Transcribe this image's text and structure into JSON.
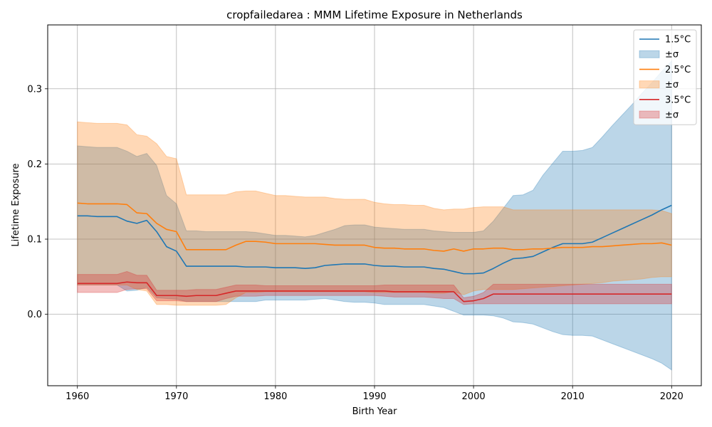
{
  "chart_data": {
    "type": "line",
    "title": "cropfailedarea : MMM Lifetime Exposure in Netherlands",
    "xlabel": "Birth Year",
    "ylabel": "Lifetime Exposure",
    "xlim": [
      1957,
      2023
    ],
    "ylim": [
      -0.095,
      0.385
    ],
    "xticks": [
      1960,
      1970,
      1980,
      1990,
      2000,
      2010,
      2020
    ],
    "yticks": [
      0.0,
      0.1,
      0.2,
      0.3
    ],
    "ytick_labels": [
      "0.0",
      "0.1",
      "0.2",
      "0.3"
    ],
    "grid": true,
    "legend_position": "top-right",
    "legend": [
      {
        "label": "1.5°C",
        "kind": "line",
        "series": 0
      },
      {
        "label": "±σ",
        "kind": "band",
        "series": 0
      },
      {
        "label": "2.5°C",
        "kind": "line",
        "series": 1
      },
      {
        "label": "±σ",
        "kind": "band",
        "series": 1
      },
      {
        "label": "3.5°C",
        "kind": "line",
        "series": 2
      },
      {
        "label": "±σ",
        "kind": "band",
        "series": 2
      }
    ],
    "x": [
      1960,
      1961,
      1962,
      1963,
      1964,
      1965,
      1966,
      1967,
      1968,
      1969,
      1970,
      1971,
      1972,
      1973,
      1974,
      1975,
      1976,
      1977,
      1978,
      1979,
      1980,
      1981,
      1982,
      1983,
      1984,
      1985,
      1986,
      1987,
      1988,
      1989,
      1990,
      1991,
      1992,
      1993,
      1994,
      1995,
      1996,
      1997,
      1998,
      1999,
      2000,
      2001,
      2002,
      2003,
      2004,
      2005,
      2006,
      2007,
      2008,
      2009,
      2010,
      2011,
      2012,
      2013,
      2014,
      2015,
      2016,
      2017,
      2018,
      2019,
      2020
    ],
    "series": [
      {
        "name": "1.5°C",
        "color": "#1f77b4",
        "values": [
          0.131,
          0.131,
          0.13,
          0.13,
          0.13,
          0.124,
          0.121,
          0.125,
          0.11,
          0.09,
          0.084,
          0.064,
          0.064,
          0.064,
          0.064,
          0.064,
          0.064,
          0.063,
          0.063,
          0.063,
          0.062,
          0.062,
          0.062,
          0.061,
          0.062,
          0.065,
          0.066,
          0.067,
          0.067,
          0.067,
          0.065,
          0.064,
          0.064,
          0.063,
          0.063,
          0.063,
          0.061,
          0.06,
          0.057,
          0.054,
          0.054,
          0.055,
          0.061,
          0.068,
          0.074,
          0.075,
          0.077,
          0.083,
          0.089,
          0.094,
          0.094,
          0.094,
          0.096,
          0.102,
          0.108,
          0.114,
          0.12,
          0.126,
          0.132,
          0.139,
          0.145
        ],
        "lower": [
          0.039,
          0.039,
          0.039,
          0.039,
          0.039,
          0.031,
          0.032,
          0.036,
          0.022,
          0.021,
          0.02,
          0.017,
          0.017,
          0.017,
          0.017,
          0.017,
          0.017,
          0.017,
          0.017,
          0.019,
          0.019,
          0.019,
          0.019,
          0.019,
          0.02,
          0.021,
          0.019,
          0.017,
          0.016,
          0.016,
          0.015,
          0.013,
          0.013,
          0.013,
          0.013,
          0.013,
          0.011,
          0.009,
          0.004,
          -0.001,
          -0.001,
          -0.001,
          -0.002,
          -0.005,
          -0.01,
          -0.011,
          -0.013,
          -0.018,
          -0.023,
          -0.027,
          -0.028,
          -0.028,
          -0.029,
          -0.034,
          -0.039,
          -0.044,
          -0.049,
          -0.054,
          -0.059,
          -0.065,
          -0.074
        ],
        "upper": [
          0.224,
          0.223,
          0.222,
          0.222,
          0.222,
          0.217,
          0.21,
          0.214,
          0.198,
          0.158,
          0.147,
          0.111,
          0.111,
          0.11,
          0.11,
          0.11,
          0.11,
          0.11,
          0.109,
          0.107,
          0.105,
          0.105,
          0.104,
          0.103,
          0.105,
          0.109,
          0.113,
          0.118,
          0.119,
          0.119,
          0.116,
          0.115,
          0.114,
          0.113,
          0.113,
          0.113,
          0.111,
          0.11,
          0.109,
          0.109,
          0.109,
          0.111,
          0.124,
          0.141,
          0.158,
          0.159,
          0.165,
          0.185,
          0.201,
          0.217,
          0.217,
          0.218,
          0.222,
          0.236,
          0.251,
          0.265,
          0.279,
          0.294,
          0.308,
          0.323,
          0.337
        ]
      },
      {
        "name": "2.5°C",
        "color": "#ff7f0e",
        "values": [
          0.148,
          0.147,
          0.147,
          0.147,
          0.147,
          0.146,
          0.135,
          0.134,
          0.121,
          0.113,
          0.11,
          0.086,
          0.086,
          0.086,
          0.086,
          0.086,
          0.092,
          0.097,
          0.097,
          0.096,
          0.094,
          0.094,
          0.094,
          0.094,
          0.094,
          0.093,
          0.092,
          0.092,
          0.092,
          0.092,
          0.089,
          0.088,
          0.088,
          0.087,
          0.087,
          0.087,
          0.085,
          0.084,
          0.087,
          0.084,
          0.087,
          0.087,
          0.088,
          0.088,
          0.086,
          0.086,
          0.087,
          0.087,
          0.088,
          0.089,
          0.089,
          0.089,
          0.09,
          0.09,
          0.091,
          0.092,
          0.093,
          0.094,
          0.094,
          0.095,
          0.092
        ],
        "lower": [
          0.039,
          0.039,
          0.039,
          0.039,
          0.039,
          0.039,
          0.033,
          0.031,
          0.013,
          0.013,
          0.012,
          0.012,
          0.012,
          0.012,
          0.012,
          0.013,
          0.022,
          0.029,
          0.029,
          0.03,
          0.03,
          0.03,
          0.03,
          0.03,
          0.03,
          0.03,
          0.03,
          0.03,
          0.03,
          0.03,
          0.029,
          0.029,
          0.029,
          0.029,
          0.029,
          0.029,
          0.028,
          0.028,
          0.03,
          0.026,
          0.031,
          0.033,
          0.033,
          0.033,
          0.033,
          0.034,
          0.035,
          0.036,
          0.037,
          0.038,
          0.039,
          0.04,
          0.041,
          0.042,
          0.044,
          0.045,
          0.046,
          0.047,
          0.049,
          0.05,
          0.05
        ],
        "upper": [
          0.256,
          0.255,
          0.254,
          0.254,
          0.254,
          0.252,
          0.239,
          0.237,
          0.227,
          0.21,
          0.207,
          0.159,
          0.159,
          0.159,
          0.159,
          0.159,
          0.163,
          0.164,
          0.164,
          0.161,
          0.158,
          0.158,
          0.157,
          0.156,
          0.156,
          0.156,
          0.154,
          0.153,
          0.153,
          0.153,
          0.149,
          0.147,
          0.146,
          0.146,
          0.145,
          0.145,
          0.141,
          0.139,
          0.14,
          0.14,
          0.142,
          0.143,
          0.143,
          0.143,
          0.139,
          0.139,
          0.139,
          0.139,
          0.139,
          0.139,
          0.139,
          0.139,
          0.139,
          0.139,
          0.139,
          0.139,
          0.139,
          0.139,
          0.139,
          0.138,
          0.134
        ]
      },
      {
        "name": "3.5°C",
        "color": "#d62728",
        "values": [
          0.041,
          0.041,
          0.041,
          0.041,
          0.041,
          0.043,
          0.042,
          0.042,
          0.025,
          0.025,
          0.025,
          0.024,
          0.025,
          0.025,
          0.025,
          0.028,
          0.031,
          0.031,
          0.031,
          0.031,
          0.031,
          0.031,
          0.031,
          0.031,
          0.031,
          0.031,
          0.031,
          0.031,
          0.031,
          0.031,
          0.031,
          0.031,
          0.03,
          0.03,
          0.03,
          0.03,
          0.03,
          0.03,
          0.03,
          0.017,
          0.018,
          0.021,
          0.027,
          0.027,
          0.027,
          0.027,
          0.027,
          0.027,
          0.027,
          0.027,
          0.027,
          0.027,
          0.027,
          0.027,
          0.027,
          0.027,
          0.027,
          0.027,
          0.027,
          0.027,
          0.027
        ],
        "lower": [
          0.029,
          0.029,
          0.029,
          0.029,
          0.029,
          0.033,
          0.034,
          0.034,
          0.018,
          0.018,
          0.018,
          0.017,
          0.017,
          0.017,
          0.017,
          0.021,
          0.024,
          0.024,
          0.024,
          0.025,
          0.025,
          0.025,
          0.025,
          0.025,
          0.025,
          0.025,
          0.025,
          0.025,
          0.025,
          0.025,
          0.025,
          0.024,
          0.023,
          0.023,
          0.023,
          0.023,
          0.022,
          0.021,
          0.021,
          0.013,
          0.014,
          0.014,
          0.014,
          0.014,
          0.014,
          0.014,
          0.014,
          0.014,
          0.014,
          0.014,
          0.014,
          0.014,
          0.014,
          0.014,
          0.014,
          0.014,
          0.014,
          0.014,
          0.014,
          0.014,
          0.014
        ],
        "upper": [
          0.053,
          0.053,
          0.053,
          0.053,
          0.053,
          0.057,
          0.052,
          0.052,
          0.032,
          0.032,
          0.032,
          0.032,
          0.033,
          0.033,
          0.033,
          0.036,
          0.039,
          0.039,
          0.039,
          0.038,
          0.038,
          0.038,
          0.038,
          0.038,
          0.038,
          0.038,
          0.038,
          0.038,
          0.038,
          0.038,
          0.038,
          0.039,
          0.039,
          0.039,
          0.039,
          0.039,
          0.039,
          0.039,
          0.039,
          0.022,
          0.024,
          0.029,
          0.04,
          0.04,
          0.04,
          0.04,
          0.04,
          0.04,
          0.04,
          0.04,
          0.04,
          0.04,
          0.04,
          0.04,
          0.04,
          0.04,
          0.04,
          0.04,
          0.04,
          0.04,
          0.04
        ]
      }
    ]
  }
}
